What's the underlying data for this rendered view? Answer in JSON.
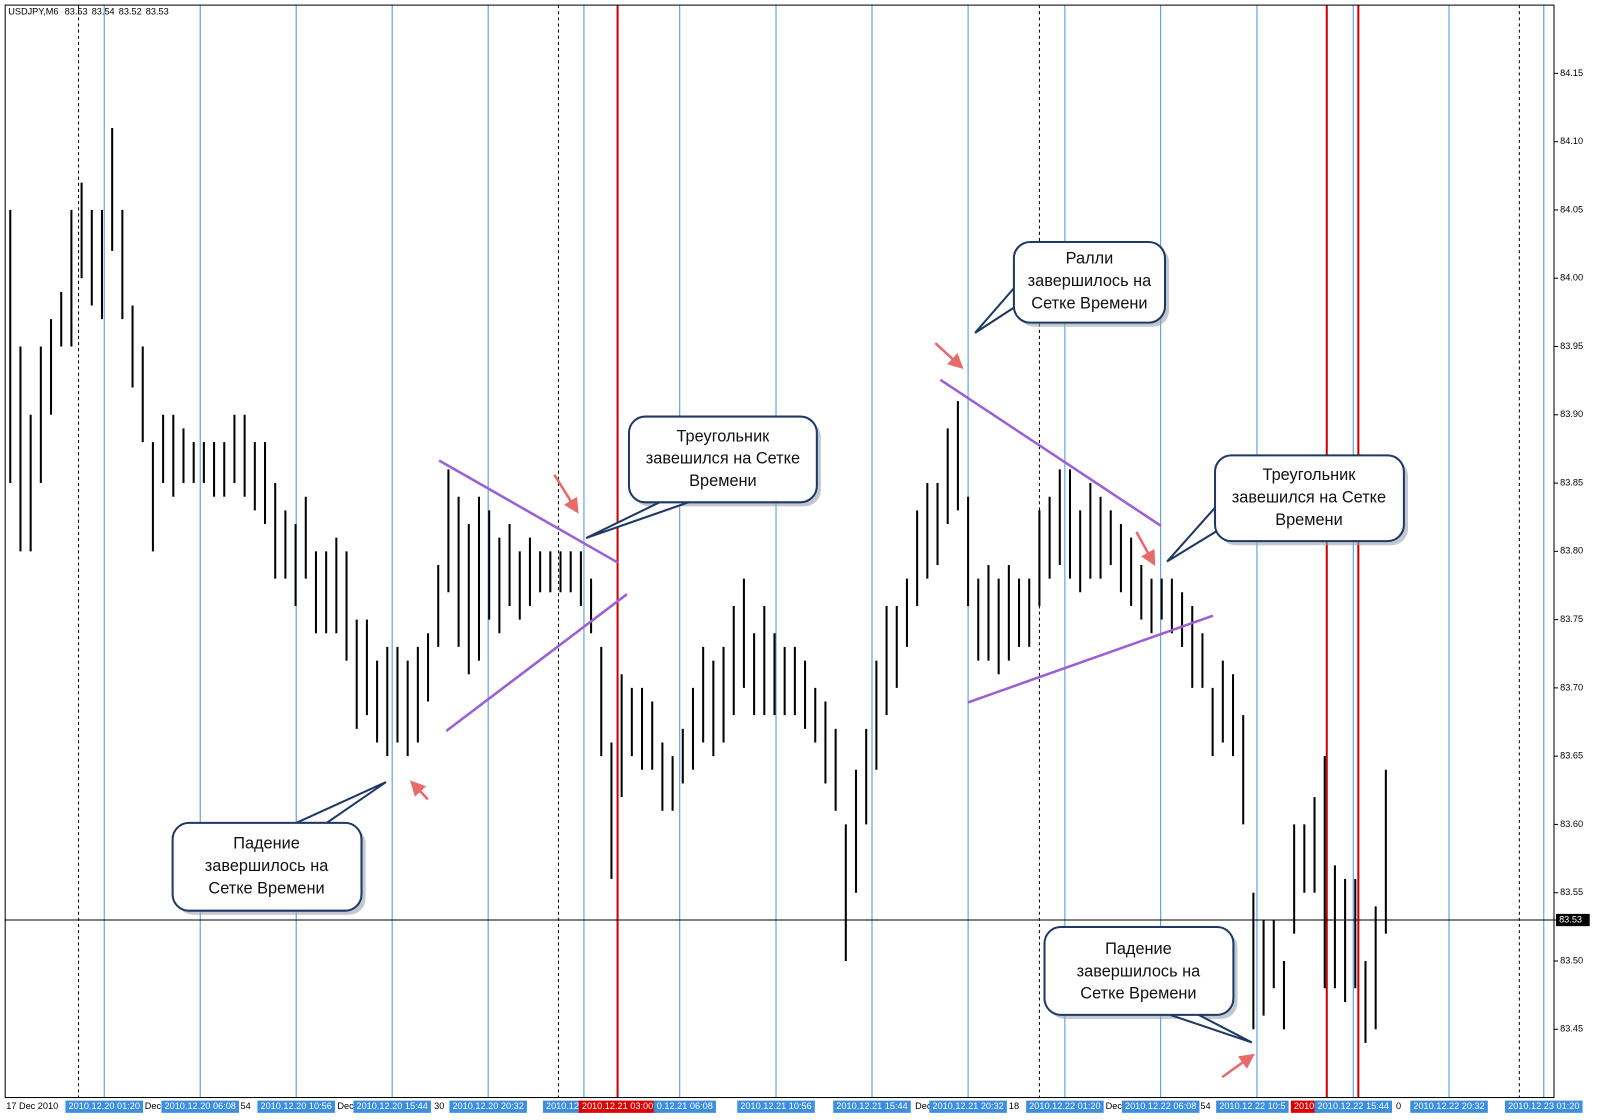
{
  "chart_data": {
    "type": "ohlc",
    "header": {
      "symbol": "USDJPY,M6",
      "ohlc": [
        83.53,
        83.54,
        83.52,
        83.53
      ]
    },
    "bar_color": "#000000",
    "high": [
      84.05,
      83.95,
      83.9,
      83.95,
      83.97,
      83.99,
      84.05,
      84.07,
      84.05,
      84.05,
      84.11,
      84.05,
      83.98,
      83.95,
      83.88,
      83.9,
      83.9,
      83.89,
      83.88,
      83.88,
      83.88,
      83.88,
      83.9,
      83.9,
      83.88,
      83.88,
      83.85,
      83.83,
      83.82,
      83.84,
      83.8,
      83.8,
      83.81,
      83.8,
      83.75,
      83.75,
      83.72,
      83.73,
      83.73,
      83.72,
      83.73,
      83.74,
      83.79,
      83.86,
      83.84,
      83.82,
      83.84,
      83.83,
      83.81,
      83.82,
      83.8,
      83.81,
      83.8,
      83.8,
      83.8,
      83.8,
      83.8,
      83.78,
      83.73,
      83.66,
      83.71,
      83.7,
      83.7,
      83.69,
      83.66,
      83.65,
      83.67,
      83.7,
      83.73,
      83.72,
      83.73,
      83.76,
      83.78,
      83.74,
      83.76,
      83.74,
      83.73,
      83.73,
      83.72,
      83.7,
      83.69,
      83.67,
      83.6,
      83.64,
      83.67,
      83.72,
      83.76,
      83.76,
      83.78,
      83.83,
      83.85,
      83.85,
      83.89,
      83.91,
      83.84,
      83.78,
      83.79,
      83.78,
      83.79,
      83.78,
      83.78,
      83.83,
      83.84,
      83.86,
      83.86,
      83.83,
      83.85,
      83.84,
      83.83,
      83.82,
      83.81,
      83.79,
      83.78,
      83.78,
      83.78,
      83.77,
      83.76,
      83.74,
      83.7,
      83.72,
      83.71,
      83.68,
      83.55,
      83.53,
      83.53,
      83.5,
      83.6,
      83.6,
      83.62,
      83.65,
      83.57,
      83.56,
      83.56,
      83.5,
      83.54,
      83.64
    ],
    "low": [
      83.85,
      83.8,
      83.8,
      83.85,
      83.9,
      83.95,
      83.95,
      84.0,
      83.98,
      83.97,
      84.02,
      83.97,
      83.92,
      83.88,
      83.8,
      83.85,
      83.84,
      83.85,
      83.85,
      83.85,
      83.84,
      83.84,
      83.85,
      83.84,
      83.83,
      83.82,
      83.78,
      83.78,
      83.76,
      83.78,
      83.74,
      83.74,
      83.74,
      83.72,
      83.67,
      83.68,
      83.66,
      83.65,
      83.66,
      83.65,
      83.66,
      83.69,
      83.73,
      83.77,
      83.73,
      83.71,
      83.72,
      83.75,
      83.74,
      83.76,
      83.75,
      83.76,
      83.77,
      83.77,
      83.77,
      83.77,
      83.76,
      83.74,
      83.65,
      83.56,
      83.62,
      83.65,
      83.64,
      83.64,
      83.61,
      83.61,
      83.63,
      83.64,
      83.66,
      83.65,
      83.66,
      83.68,
      83.7,
      83.68,
      83.68,
      83.68,
      83.68,
      83.68,
      83.67,
      83.66,
      83.63,
      83.61,
      83.5,
      83.55,
      83.6,
      83.64,
      83.68,
      83.7,
      83.73,
      83.76,
      83.78,
      83.79,
      83.82,
      83.83,
      83.76,
      83.72,
      83.72,
      83.71,
      83.72,
      83.73,
      83.73,
      83.76,
      83.78,
      83.79,
      83.78,
      83.77,
      83.78,
      83.78,
      83.79,
      83.77,
      83.76,
      83.75,
      83.74,
      83.75,
      83.74,
      83.73,
      83.7,
      83.7,
      83.65,
      83.66,
      83.65,
      83.6,
      83.45,
      83.46,
      83.48,
      83.45,
      83.52,
      83.55,
      83.55,
      83.48,
      83.48,
      83.47,
      83.48,
      83.44,
      83.45,
      83.52
    ],
    "xlim": [
      0,
      152
    ],
    "ylim": [
      83.4,
      84.2
    ],
    "yticks": [
      83.45,
      {
        "value": 83.5,
        "label": "83.50"
      },
      83.55,
      {
        "value": 83.6,
        "label": "83.60"
      },
      83.65,
      {
        "value": 83.7,
        "label": "83.70"
      },
      83.75,
      {
        "value": 83.8,
        "label": "83.80"
      },
      83.85,
      {
        "value": 83.9,
        "label": "83.90"
      },
      83.95,
      {
        "value": 84.0,
        "label": "84.00"
      },
      84.05,
      {
        "value": 84.1,
        "label": "84.10"
      },
      84.15
    ],
    "current_price": 83.53,
    "date_start": "17 Dec 2010",
    "time_grid": {
      "color": "#4a94dc",
      "values": [
        9.72,
        19.14,
        28.56,
        37.98,
        47.4,
        56.8,
        66.2,
        75.65,
        85.07,
        94.5,
        104,
        113.4,
        122.85,
        132.3,
        141.7,
        151.0
      ]
    },
    "red_lines": {
      "color": "#cc0000",
      "values": [
        60.1,
        129.7,
        132.8
      ]
    },
    "day_separators": {
      "color": "#000000",
      "values": [
        7.2,
        54.3,
        101.5,
        148.6
      ]
    },
    "xticks": [
      {
        "value": 9.72,
        "label": "2010.12.20 01:20",
        "background": "#3d8ee0"
      },
      {
        "value": 19.14,
        "label": "2010.12.20 06:08",
        "background": "#3d8ee0"
      },
      {
        "value": 28.56,
        "label": "2010.12.20 10:56",
        "background": "#3d8ee0"
      },
      {
        "value": 37.98,
        "label": "2010.12.20 15:44",
        "background": "#3d8ee0"
      },
      {
        "value": 47.4,
        "label": "2010.12.20 20:32",
        "background": "#3d8ee0"
      },
      {
        "value": 54.7,
        "label": "2010.12",
        "background": "#3d8ee0"
      },
      {
        "value": 60.1,
        "label": "2010.12.21 03:00",
        "background": "#dd0000"
      },
      {
        "value": 66.7,
        "label": "0.12.21 06:08",
        "background": "#3d8ee0"
      },
      {
        "value": 75.65,
        "label": "2010.12.21 10:56",
        "background": "#3d8ee0"
      },
      {
        "value": 85.07,
        "label": "2010.12.21 15:44",
        "background": "#3d8ee0"
      },
      {
        "value": 94.5,
        "label": "2010.12.21 20:32",
        "background": "#3d8ee0"
      },
      {
        "value": 104,
        "label": "2010.12.22 01:20",
        "background": "#3d8ee0"
      },
      {
        "value": 113.4,
        "label": "2010.12.22 06:08",
        "background": "#3d8ee0"
      },
      {
        "value": 122.4,
        "label": "2010.12.22 10:5",
        "background": "#3d8ee0"
      },
      {
        "value": 127.6,
        "label": "2010.",
        "background": "#dd0000"
      },
      {
        "value": 132.3,
        "label": "2010.12.22 15:44",
        "background": "#3d8ee0"
      },
      {
        "value": 141.7,
        "label": "2010.12.22 20:32",
        "background": "#3d8ee0"
      },
      {
        "value": 151.0,
        "label": "2010.12.23 01:20",
        "background": "#3d8ee0"
      }
    ],
    "xticks_partial": [
      {
        "value": 13.7,
        "label": "Dec"
      },
      {
        "value": 23.1,
        "label": "54"
      },
      {
        "value": 32.6,
        "label": "Dec"
      },
      {
        "value": 42.1,
        "label": "30"
      },
      {
        "value": 89.3,
        "label": "Dec"
      },
      {
        "value": 98.5,
        "label": "18"
      },
      {
        "value": 108.0,
        "label": "Dec"
      },
      {
        "value": 117.3,
        "label": "54"
      },
      {
        "value": 136.5,
        "label": "0"
      }
    ],
    "annotations": [
      {
        "lines": [
          "Падение",
          "завершилось на",
          "Сетке Времени"
        ]
      },
      {
        "lines": [
          "Треугольник",
          "завешился на Сетке",
          "Времени"
        ]
      },
      {
        "lines": [
          "Ралли",
          "завершилось на",
          "Сетке Времени"
        ]
      },
      {
        "lines": [
          "Треугольник",
          "завешился на Сетке",
          "Времени"
        ]
      },
      {
        "lines": [
          "Падение",
          "завершилось на",
          "Сетке Времени"
        ]
      }
    ]
  }
}
